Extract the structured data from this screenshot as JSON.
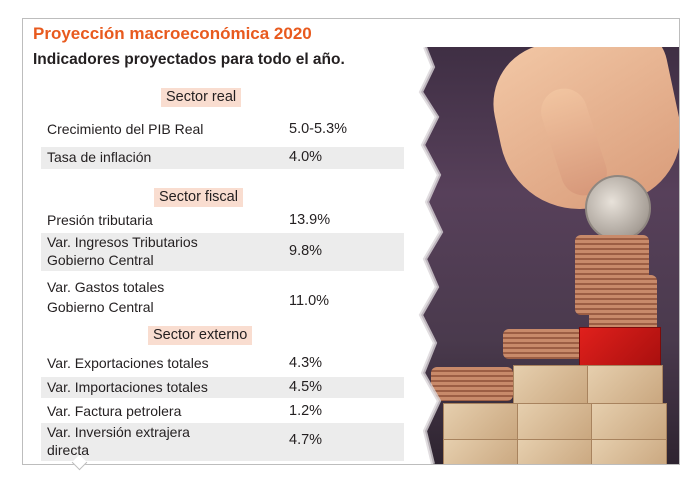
{
  "header": {
    "title": "Proyección macroeconómica 2020",
    "subtitle": "Indicadores proyectados para todo el año."
  },
  "sections": {
    "real": {
      "label": "Sector real",
      "rows": [
        {
          "label": "Crecimiento del PIB Real",
          "value": "5.0-5.3%"
        },
        {
          "label": "Tasa de inflación",
          "value": "4.0%"
        }
      ]
    },
    "fiscal": {
      "label": "Sector fiscal",
      "rows": [
        {
          "label": "Presión tributaria",
          "value": "13.9%"
        },
        {
          "label_1": "Var. Ingresos Tributarios",
          "label_2": "Gobierno Central",
          "value": "9.8%"
        },
        {
          "label_1": "Var. Gastos totales",
          "label_2": "Gobierno Central",
          "value": "11.0%"
        }
      ]
    },
    "externo": {
      "label": "Sector externo",
      "rows": [
        {
          "label": "Var. Exportaciones totales",
          "value": "4.3%"
        },
        {
          "label": "Var. Importaciones totales",
          "value": "4.5%"
        },
        {
          "label": "Var. Factura petrolera",
          "value": "1.2%"
        },
        {
          "label_1": "Var. Inversión extrajera",
          "label_2": "directa",
          "value": "4.7%"
        }
      ]
    }
  },
  "colors": {
    "title": "#e85a1e",
    "section_band": "#f9ddd0",
    "row_shade": "#ececec"
  }
}
